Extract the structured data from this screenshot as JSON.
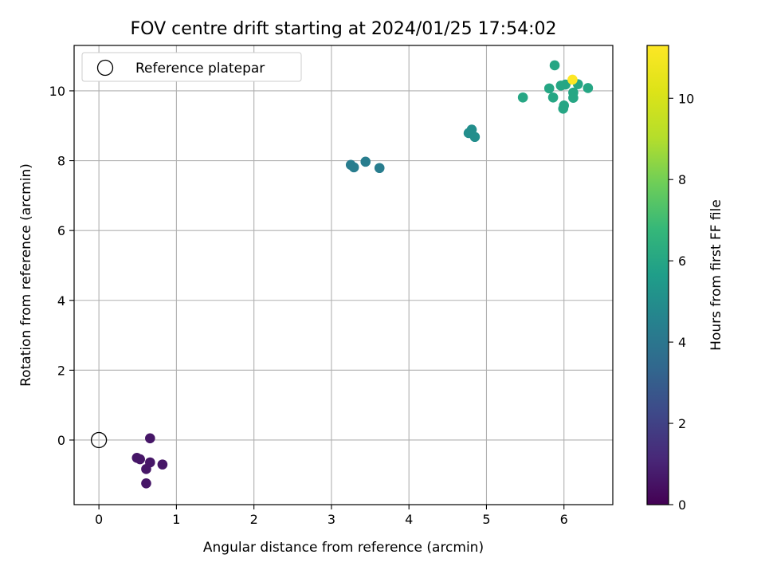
{
  "chart_data": {
    "type": "scatter",
    "title": "FOV centre drift starting at 2024/01/25 17:54:02",
    "xlabel": "Angular distance from reference (arcmin)",
    "ylabel": "Rotation from reference (arcmin)",
    "xlim": [
      -0.32,
      6.63
    ],
    "ylim": [
      -1.85,
      11.3
    ],
    "xticks": [
      "0",
      "1",
      "2",
      "3",
      "4",
      "5",
      "6"
    ],
    "xtick_values": [
      0,
      1,
      2,
      3,
      4,
      5,
      6
    ],
    "yticks": [
      "0",
      "2",
      "4",
      "6",
      "8",
      "10"
    ],
    "ytick_values": [
      0,
      2,
      4,
      6,
      8,
      10
    ],
    "grid": true,
    "legend": {
      "placement": "top-left",
      "entries": [
        "Reference platepar"
      ]
    },
    "reference_point": {
      "x": 0,
      "y": 0,
      "label": "Reference platepar"
    },
    "colorbar": {
      "label": "Hours from first FF file",
      "range": [
        0,
        11.3
      ],
      "ticks": [
        "0",
        "2",
        "4",
        "6",
        "8",
        "10"
      ],
      "tick_values": [
        0,
        2,
        4,
        6,
        8,
        10
      ],
      "colormap": "viridis"
    },
    "points": [
      {
        "x": 0.66,
        "y": 0.05,
        "hours": 0.6
      },
      {
        "x": 0.49,
        "y": -0.51,
        "hours": 0.6
      },
      {
        "x": 0.53,
        "y": -0.55,
        "hours": 0.6
      },
      {
        "x": 0.66,
        "y": -0.64,
        "hours": 0.6
      },
      {
        "x": 0.82,
        "y": -0.7,
        "hours": 0.6
      },
      {
        "x": 0.61,
        "y": -0.83,
        "hours": 0.6
      },
      {
        "x": 0.61,
        "y": -1.24,
        "hours": 0.6
      },
      {
        "x": 3.25,
        "y": 7.88,
        "hours": 4.3
      },
      {
        "x": 3.29,
        "y": 7.81,
        "hours": 4.3
      },
      {
        "x": 3.44,
        "y": 7.97,
        "hours": 4.3
      },
      {
        "x": 3.62,
        "y": 7.79,
        "hours": 4.3
      },
      {
        "x": 4.77,
        "y": 8.79,
        "hours": 5.0
      },
      {
        "x": 4.81,
        "y": 8.89,
        "hours": 5.0
      },
      {
        "x": 4.85,
        "y": 8.68,
        "hours": 5.0
      },
      {
        "x": 5.47,
        "y": 9.81,
        "hours": 6.0
      },
      {
        "x": 5.81,
        "y": 10.07,
        "hours": 6.0
      },
      {
        "x": 5.86,
        "y": 9.81,
        "hours": 6.0
      },
      {
        "x": 5.88,
        "y": 10.73,
        "hours": 6.0
      },
      {
        "x": 5.96,
        "y": 10.15,
        "hours": 6.0
      },
      {
        "x": 6.02,
        "y": 10.18,
        "hours": 6.0
      },
      {
        "x": 5.99,
        "y": 9.49,
        "hours": 6.0
      },
      {
        "x": 6.0,
        "y": 9.58,
        "hours": 6.0
      },
      {
        "x": 6.12,
        "y": 9.95,
        "hours": 6.0
      },
      {
        "x": 6.12,
        "y": 9.8,
        "hours": 6.0
      },
      {
        "x": 6.18,
        "y": 10.19,
        "hours": 6.0
      },
      {
        "x": 6.31,
        "y": 10.08,
        "hours": 6.0
      },
      {
        "x": 6.11,
        "y": 10.32,
        "hours": 11.3
      }
    ]
  }
}
